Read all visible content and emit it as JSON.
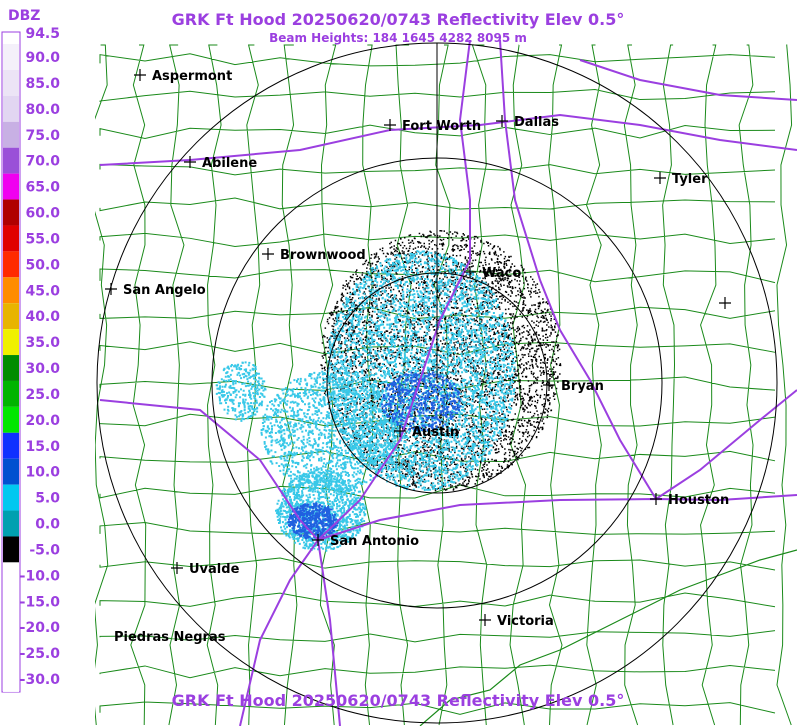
{
  "header": {
    "title": "GRK Ft Hood 20250620/0743 Reflectivity Elev 0.5°",
    "subtitle": "Beam Heights: 184 1645 4282 8095 m",
    "footer_title": "GRK Ft Hood 20250620/0743 Reflectivity Elev 0.5°"
  },
  "legend": {
    "unit": "DBZ",
    "items": [
      {
        "label": "94.5",
        "color": "#ffffff"
      },
      {
        "label": "90.0",
        "color": "#f4f0fa"
      },
      {
        "label": "85.0",
        "color": "#ece4f6"
      },
      {
        "label": "80.0",
        "color": "#e2d6f2"
      },
      {
        "label": "75.0",
        "color": "#c8b0e4"
      },
      {
        "label": "70.0",
        "color": "#9a50d8"
      },
      {
        "label": "65.0",
        "color": "#f000f0"
      },
      {
        "label": "60.0",
        "color": "#b00000"
      },
      {
        "label": "55.0",
        "color": "#e00000"
      },
      {
        "label": "50.0",
        "color": "#ff2a00"
      },
      {
        "label": "45.0",
        "color": "#ff8c00"
      },
      {
        "label": "40.0",
        "color": "#e8b400"
      },
      {
        "label": "35.0",
        "color": "#f0f000"
      },
      {
        "label": "30.0",
        "color": "#008c00"
      },
      {
        "label": "25.0",
        "color": "#00b400"
      },
      {
        "label": "20.0",
        "color": "#00e600"
      },
      {
        "label": "15.0",
        "color": "#1030ff"
      },
      {
        "label": "10.0",
        "color": "#0050d0"
      },
      {
        "label": "5.0",
        "color": "#00c8f0"
      },
      {
        "label": "0.0",
        "color": "#00a0b0"
      },
      {
        "label": "-5.0",
        "color": "#000000"
      },
      {
        "label": "-10.0",
        "color": "#ffffff"
      },
      {
        "label": "-15.0",
        "color": "#ffffff"
      },
      {
        "label": "-20.0",
        "color": "#ffffff"
      },
      {
        "label": "-25.0",
        "color": "#ffffff"
      },
      {
        "label": "-30.0",
        "color": "#ffffff"
      }
    ]
  },
  "cities": [
    "Aspermont",
    "Fort Worth",
    "Dallas",
    "Abilene",
    "Tyler",
    "Brownwood",
    "Waco",
    "San Angelo",
    "Bryan",
    "Austin",
    "Houston",
    "San Antonio",
    "Uvalde",
    "Victoria",
    "Piedras Negras"
  ]
}
